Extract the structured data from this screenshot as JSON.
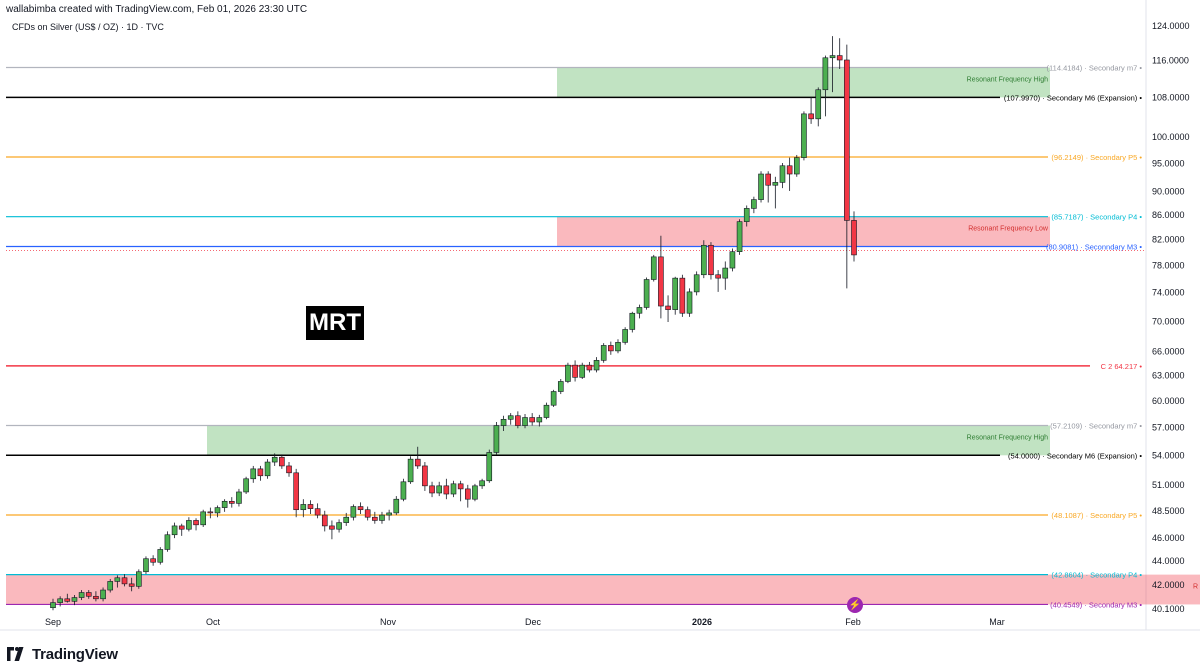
{
  "header": {
    "credit": "wallabimba created with TradingView.com, Feb 01, 2026 23:30 UTC",
    "symbol": "CFDs on Silver (US$ / OZ) · 1D · TVC"
  },
  "badge": "MRT",
  "footer": {
    "brand": "TradingView"
  },
  "chart_data": {
    "type": "candlestick",
    "y_axis": {
      "scale": "log",
      "range": [
        39.8,
        126
      ],
      "ticks": [
        "124.0000",
        "116.0000",
        "108.0000",
        "100.0000",
        "95.0000",
        "90.0000",
        "86.0000",
        "82.0000",
        "78.0000",
        "74.0000",
        "70.0000",
        "66.0000",
        "63.0000",
        "60.0000",
        "57.0000",
        "54.0000",
        "51.0000",
        "48.5000",
        "46.0000",
        "44.0000",
        "42.0000",
        "40.1000"
      ],
      "tick_values": [
        124,
        116,
        108,
        100,
        95,
        90,
        86,
        82,
        78,
        74,
        70,
        66,
        63,
        60,
        57,
        54,
        51,
        48.5,
        46,
        44,
        42,
        40.1
      ]
    },
    "x_axis": {
      "labels": [
        "Sep",
        "Oct",
        "Nov",
        "Dec",
        "2026",
        "Feb",
        "Mar"
      ]
    },
    "levels": [
      {
        "price": 114.4184,
        "color": "#b2b5be",
        "label": "(114.4184) · Secondary m7 •"
      },
      {
        "price": 107.997,
        "color": "#000000",
        "label": "(107.9970) · Secondary M6 (Expansion) •"
      },
      {
        "price": 96.2149,
        "color": "#f9a825",
        "label": "(96.2149) · Secondary P5 •"
      },
      {
        "price": 85.7187,
        "color": "#00bcd4",
        "label": "(85.7187) · Secondary P4 •"
      },
      {
        "price": 80.9081,
        "color": "#2962ff",
        "label": "(80.9081) · Seconndary M3 •"
      },
      {
        "price": 64.217,
        "color": "#f23645",
        "label": "C 2  64.217 •"
      },
      {
        "price": 57.2109,
        "color": "#b2b5be",
        "label": "(57.2109) · Secondary m7 •"
      },
      {
        "price": 54.0,
        "color": "#000000",
        "label": "(54.0000) · Secondary M6 (Expansion) •"
      },
      {
        "price": 48.1087,
        "color": "#f9a825",
        "label": "(48.1087) · Secondary P5 •"
      },
      {
        "price": 42.8604,
        "color": "#00bcd4",
        "label": "(42.8604) · Secondary P4 •"
      },
      {
        "price": 40.4549,
        "color": "#9c27b0",
        "label": "(40.4549) · Secondary M3 •"
      }
    ],
    "zones": [
      {
        "label": "Resonant Frequency High",
        "from": 108.0,
        "to": 114.4184,
        "color": "#4caf50"
      },
      {
        "label": "Resonant Frequency Low",
        "from": 80.9081,
        "to": 85.7187,
        "color": "#f23645"
      },
      {
        "label": "Resonant Frequency High",
        "from": 54.0,
        "to": 57.2109,
        "color": "#4caf50"
      },
      {
        "label": "R",
        "from": 40.4549,
        "to": 42.8604,
        "color": "#f23645"
      }
    ],
    "candles": [
      [
        40.2,
        40.9,
        40.0,
        40.6
      ],
      [
        40.6,
        41.1,
        40.3,
        40.9
      ],
      [
        40.9,
        41.3,
        40.6,
        40.7
      ],
      [
        40.7,
        41.2,
        40.4,
        41.0
      ],
      [
        41.0,
        41.6,
        40.8,
        41.4
      ],
      [
        41.4,
        41.6,
        40.9,
        41.1
      ],
      [
        41.1,
        41.5,
        40.7,
        40.9
      ],
      [
        40.9,
        41.8,
        40.7,
        41.6
      ],
      [
        41.6,
        42.5,
        41.4,
        42.3
      ],
      [
        42.3,
        42.8,
        41.8,
        42.6
      ],
      [
        42.6,
        42.9,
        41.9,
        42.1
      ],
      [
        42.1,
        42.6,
        41.5,
        41.9
      ],
      [
        41.9,
        43.3,
        41.7,
        43.1
      ],
      [
        43.1,
        44.4,
        42.9,
        44.2
      ],
      [
        44.2,
        44.5,
        43.6,
        43.9
      ],
      [
        43.9,
        45.2,
        43.7,
        45.0
      ],
      [
        45.0,
        46.6,
        44.8,
        46.3
      ],
      [
        46.3,
        47.4,
        46.0,
        47.1
      ],
      [
        47.1,
        47.3,
        46.2,
        46.8
      ],
      [
        46.8,
        47.9,
        46.6,
        47.6
      ],
      [
        47.6,
        47.8,
        46.7,
        47.2
      ],
      [
        47.2,
        48.6,
        47.0,
        48.4
      ],
      [
        48.4,
        48.8,
        47.8,
        48.3
      ],
      [
        48.3,
        49.0,
        47.9,
        48.8
      ],
      [
        48.8,
        49.6,
        48.4,
        49.4
      ],
      [
        49.4,
        49.8,
        48.8,
        49.2
      ],
      [
        49.2,
        50.6,
        48.9,
        50.3
      ],
      [
        50.3,
        51.8,
        50.1,
        51.6
      ],
      [
        51.6,
        52.9,
        51.2,
        52.6
      ],
      [
        52.6,
        52.9,
        51.4,
        51.9
      ],
      [
        51.9,
        53.6,
        51.6,
        53.3
      ],
      [
        53.3,
        54.2,
        52.9,
        53.8
      ],
      [
        53.8,
        54.1,
        52.6,
        52.9
      ],
      [
        52.9,
        53.3,
        51.8,
        52.2
      ],
      [
        52.2,
        52.6,
        47.9,
        48.6
      ],
      [
        48.6,
        49.6,
        47.9,
        49.1
      ],
      [
        49.1,
        49.5,
        48.2,
        48.7
      ],
      [
        48.7,
        49.2,
        47.8,
        48.1
      ],
      [
        48.1,
        48.5,
        46.6,
        47.1
      ],
      [
        47.1,
        47.6,
        45.9,
        46.8
      ],
      [
        46.8,
        47.7,
        46.5,
        47.4
      ],
      [
        47.4,
        48.3,
        47.1,
        47.9
      ],
      [
        47.9,
        49.1,
        47.6,
        48.9
      ],
      [
        48.9,
        49.3,
        48.2,
        48.6
      ],
      [
        48.6,
        48.9,
        47.6,
        47.9
      ],
      [
        47.9,
        48.4,
        47.3,
        47.6
      ],
      [
        47.6,
        48.4,
        47.3,
        48.1
      ],
      [
        48.1,
        48.6,
        47.6,
        48.3
      ],
      [
        48.3,
        49.9,
        48.1,
        49.6
      ],
      [
        49.6,
        51.6,
        49.4,
        51.3
      ],
      [
        51.3,
        53.9,
        51.1,
        53.6
      ],
      [
        53.6,
        54.9,
        52.6,
        52.9
      ],
      [
        52.9,
        53.3,
        50.4,
        50.9
      ],
      [
        50.9,
        51.3,
        49.8,
        50.2
      ],
      [
        50.2,
        51.3,
        49.9,
        50.9
      ],
      [
        50.9,
        51.6,
        49.6,
        50.1
      ],
      [
        50.1,
        51.4,
        49.8,
        51.1
      ],
      [
        51.1,
        51.4,
        49.4,
        50.6
      ],
      [
        50.6,
        51.0,
        48.8,
        49.6
      ],
      [
        49.6,
        51.1,
        49.4,
        50.9
      ],
      [
        50.9,
        51.6,
        50.6,
        51.4
      ],
      [
        51.4,
        54.6,
        51.2,
        54.3
      ],
      [
        54.3,
        57.6,
        54.1,
        57.2
      ],
      [
        57.2,
        58.3,
        56.6,
        57.9
      ],
      [
        57.9,
        58.6,
        57.3,
        58.3
      ],
      [
        58.3,
        58.8,
        56.9,
        57.2
      ],
      [
        57.2,
        58.5,
        56.9,
        58.1
      ],
      [
        58.1,
        58.6,
        57.2,
        57.6
      ],
      [
        57.6,
        58.4,
        57.1,
        58.1
      ],
      [
        58.1,
        59.8,
        57.9,
        59.5
      ],
      [
        59.5,
        61.3,
        59.3,
        61.1
      ],
      [
        61.1,
        62.6,
        60.8,
        62.3
      ],
      [
        62.3,
        64.6,
        62.1,
        64.3
      ],
      [
        64.3,
        64.9,
        62.3,
        62.8
      ],
      [
        62.8,
        64.6,
        62.6,
        64.3
      ],
      [
        64.3,
        64.7,
        63.4,
        63.7
      ],
      [
        63.7,
        65.3,
        63.4,
        64.9
      ],
      [
        64.9,
        67.1,
        64.6,
        66.8
      ],
      [
        66.8,
        67.3,
        65.6,
        66.1
      ],
      [
        66.1,
        67.6,
        65.8,
        67.2
      ],
      [
        67.2,
        69.2,
        66.9,
        68.9
      ],
      [
        68.9,
        71.3,
        68.5,
        71.1
      ],
      [
        71.1,
        72.3,
        70.4,
        71.9
      ],
      [
        71.9,
        76.2,
        71.6,
        75.9
      ],
      [
        75.9,
        79.6,
        75.6,
        79.3
      ],
      [
        79.3,
        82.6,
        70.4,
        72.1
      ],
      [
        72.1,
        73.6,
        69.9,
        71.6
      ],
      [
        71.6,
        76.3,
        70.9,
        76.1
      ],
      [
        76.1,
        76.6,
        70.6,
        71.1
      ],
      [
        71.1,
        74.6,
        70.6,
        74.1
      ],
      [
        74.1,
        77.1,
        73.6,
        76.6
      ],
      [
        76.6,
        81.9,
        76.1,
        81.1
      ],
      [
        81.1,
        81.6,
        75.9,
        76.6
      ],
      [
        76.6,
        77.3,
        74.1,
        76.1
      ],
      [
        76.1,
        78.6,
        74.4,
        77.6
      ],
      [
        77.6,
        80.6,
        77.1,
        80.1
      ],
      [
        80.1,
        85.3,
        79.6,
        84.9
      ],
      [
        84.9,
        87.6,
        84.1,
        87.1
      ],
      [
        87.1,
        89.1,
        86.3,
        88.6
      ],
      [
        88.6,
        93.6,
        88.1,
        93.1
      ],
      [
        93.1,
        93.6,
        88.1,
        91.1
      ],
      [
        91.1,
        92.6,
        87.1,
        91.6
      ],
      [
        91.6,
        95.1,
        90.6,
        94.6
      ],
      [
        94.6,
        96.1,
        90.1,
        93.1
      ],
      [
        93.1,
        96.6,
        92.6,
        96.1
      ],
      [
        96.1,
        105.1,
        95.6,
        104.6
      ],
      [
        104.6,
        108.1,
        102.6,
        103.6
      ],
      [
        103.6,
        110.1,
        102.1,
        109.6
      ],
      [
        109.6,
        117.1,
        104.1,
        116.6
      ],
      [
        116.6,
        121.6,
        109.1,
        117.1
      ],
      [
        117.1,
        121.1,
        114.1,
        116.1
      ],
      [
        116.1,
        119.6,
        74.6,
        85.1
      ],
      [
        85.1,
        86.6,
        78.6,
        79.6
      ]
    ]
  }
}
